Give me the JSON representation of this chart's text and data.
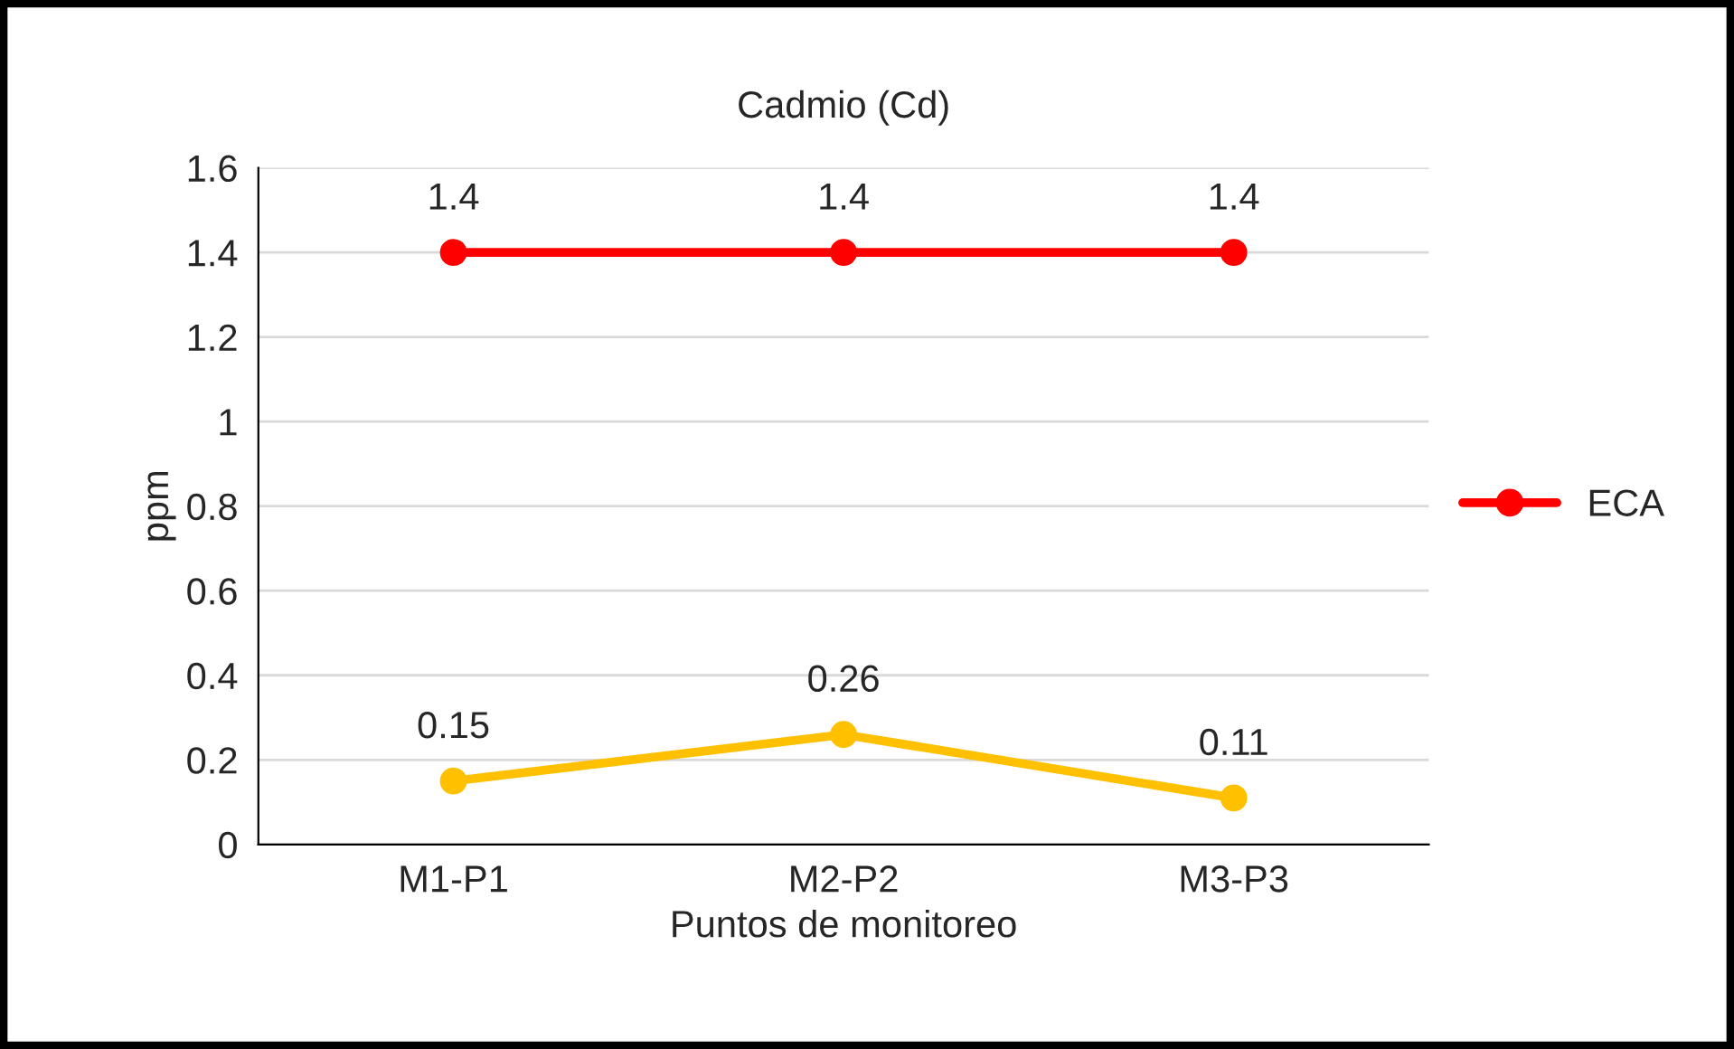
{
  "chart_data": {
    "type": "line",
    "title": "Cadmio (Cd)",
    "xlabel": "Puntos de monitoreo",
    "ylabel": "ppm",
    "categories": [
      "M1-P1",
      "M2-P2",
      "M3-P3"
    ],
    "series": [
      {
        "name": "ECA",
        "color": "#ff0000",
        "values": [
          1.4,
          1.4,
          1.4
        ]
      },
      {
        "color": "#ffc000",
        "values": [
          0.15,
          0.26,
          0.11
        ]
      }
    ],
    "ylim": [
      0,
      1.6
    ],
    "yticks": [
      0,
      0.2,
      0.4,
      0.6,
      0.8,
      1,
      1.2,
      1.4,
      1.6
    ],
    "grid": "y",
    "legend": "right",
    "marker": "circle",
    "line_style": "solid",
    "data_labels": true
  }
}
